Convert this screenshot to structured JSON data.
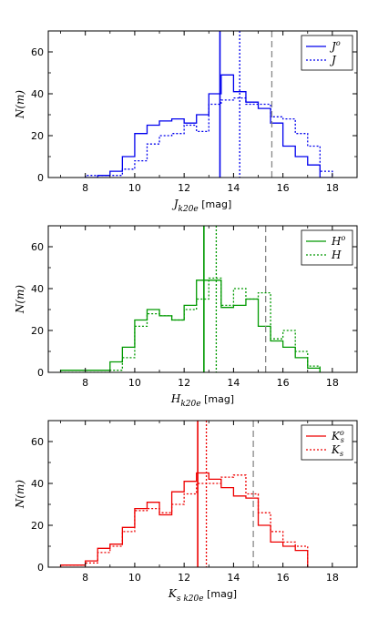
{
  "chart_data": [
    {
      "type": "histogram",
      "color": "#0000ee",
      "xlim": [
        6.5,
        19
      ],
      "ylim": [
        0,
        70
      ],
      "xticks": [
        "8",
        "10",
        "12",
        "14",
        "16",
        "18"
      ],
      "yticks": [
        "0",
        "20",
        "40",
        "60"
      ],
      "ylabel": "N(m)",
      "xlabel": {
        "main": "J",
        "sub": "k20e",
        "unit": "[mag]"
      },
      "legend": [
        {
          "label": "J",
          "sup": "o",
          "style": "solid"
        },
        {
          "label": "J",
          "sup": "",
          "style": "dotted"
        }
      ],
      "legend_position": "top-right",
      "bin_edges": [
        8.0,
        8.5,
        9.0,
        9.5,
        10.0,
        10.5,
        11.0,
        11.5,
        12.0,
        12.5,
        13.0,
        13.5,
        14.0,
        14.5,
        15.0,
        15.5,
        16.0,
        16.5,
        17.0,
        17.5,
        18.0
      ],
      "series": [
        {
          "name": "J^o",
          "style": "solid",
          "counts": [
            0,
            1,
            3,
            10,
            21,
            25,
            27,
            28,
            26,
            30,
            40,
            49,
            41,
            36,
            33,
            26,
            15,
            10,
            6,
            0
          ]
        },
        {
          "name": "J",
          "style": "dotted",
          "counts": [
            1,
            1,
            1,
            4,
            8,
            16,
            20,
            21,
            25,
            22,
            35,
            37,
            38,
            35,
            35,
            29,
            28,
            21,
            15,
            3
          ]
        }
      ],
      "vlines": [
        {
          "x": 13.45,
          "style": "solid"
        },
        {
          "x": 14.25,
          "style": "dotted"
        },
        {
          "x": 15.55,
          "style": "dashed",
          "color": "#888888"
        }
      ]
    },
    {
      "type": "histogram",
      "color": "#009900",
      "xlim": [
        6.5,
        19
      ],
      "ylim": [
        0,
        70
      ],
      "xticks": [
        "8",
        "10",
        "12",
        "14",
        "16",
        "18"
      ],
      "yticks": [
        "0",
        "20",
        "40",
        "60"
      ],
      "ylabel": "N(m)",
      "xlabel": {
        "main": "H",
        "sub": "k20e",
        "unit": "[mag]"
      },
      "legend": [
        {
          "label": "H",
          "sup": "o",
          "style": "solid"
        },
        {
          "label": "H",
          "sup": "",
          "style": "dotted"
        }
      ],
      "legend_position": "top-right",
      "bin_edges": [
        7.0,
        7.5,
        8.0,
        8.5,
        9.0,
        9.5,
        10.0,
        10.5,
        11.0,
        11.5,
        12.0,
        12.5,
        13.0,
        13.5,
        14.0,
        14.5,
        15.0,
        15.5,
        16.0,
        16.5,
        17.0,
        17.5
      ],
      "series": [
        {
          "name": "H^o",
          "style": "solid",
          "counts": [
            1,
            1,
            1,
            1,
            5,
            12,
            25,
            30,
            27,
            25,
            32,
            44,
            44,
            31,
            32,
            35,
            22,
            15,
            12,
            7,
            2
          ]
        },
        {
          "name": "H",
          "style": "dotted",
          "counts": [
            0,
            0,
            0,
            0,
            1,
            7,
            22,
            28,
            27,
            25,
            30,
            35,
            45,
            32,
            40,
            35,
            38,
            16,
            20,
            10,
            3
          ]
        }
      ],
      "vlines": [
        {
          "x": 12.8,
          "style": "solid"
        },
        {
          "x": 13.3,
          "style": "dotted"
        },
        {
          "x": 15.3,
          "style": "dashed",
          "color": "#888888"
        }
      ]
    },
    {
      "type": "histogram",
      "color": "#ee0000",
      "xlim": [
        6.5,
        19
      ],
      "ylim": [
        0,
        70
      ],
      "xticks": [
        "8",
        "10",
        "12",
        "14",
        "16",
        "18"
      ],
      "yticks": [
        "0",
        "20",
        "40",
        "60"
      ],
      "ylabel": "N(m)",
      "xlabel": {
        "main": "K",
        "sub": "s k20e",
        "unit": "[mag]"
      },
      "legend": [
        {
          "label": "K",
          "sup": "o",
          "sub": "s",
          "style": "solid"
        },
        {
          "label": "K",
          "sup": "",
          "sub": "s",
          "style": "dotted"
        }
      ],
      "legend_position": "top-right",
      "bin_edges": [
        7.0,
        7.5,
        8.0,
        8.5,
        9.0,
        9.5,
        10.0,
        10.5,
        11.0,
        11.5,
        12.0,
        12.5,
        13.0,
        13.5,
        14.0,
        14.5,
        15.0,
        15.5,
        16.0,
        16.5,
        17.0
      ],
      "series": [
        {
          "name": "K_s^o",
          "style": "solid",
          "counts": [
            1,
            1,
            3,
            9,
            11,
            19,
            28,
            31,
            25,
            36,
            41,
            45,
            42,
            38,
            34,
            33,
            20,
            12,
            10,
            8
          ]
        },
        {
          "name": "K_s",
          "style": "dotted",
          "counts": [
            1,
            1,
            2,
            7,
            10,
            17,
            27,
            28,
            26,
            30,
            35,
            40,
            40,
            43,
            44,
            35,
            26,
            17,
            12,
            10
          ]
        }
      ],
      "vlines": [
        {
          "x": 12.55,
          "style": "solid"
        },
        {
          "x": 12.9,
          "style": "dotted"
        },
        {
          "x": 14.8,
          "style": "dashed",
          "color": "#888888"
        }
      ]
    }
  ]
}
